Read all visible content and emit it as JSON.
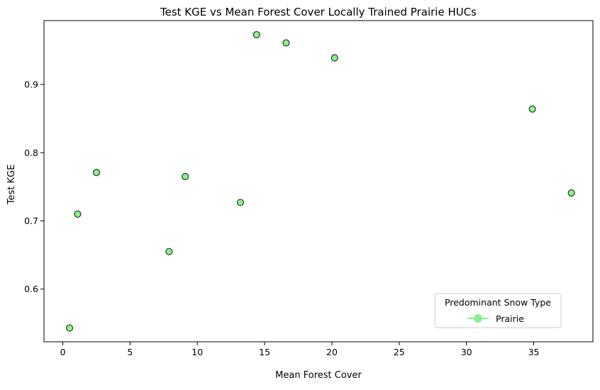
{
  "chart_data": {
    "type": "scatter",
    "title": "Test KGE vs Mean Forest Cover Locally Trained Prairie HUCs",
    "xlabel": "Mean Forest Cover",
    "ylabel": "Test KGE",
    "xlim": [
      -1.4,
      39.4
    ],
    "ylim": [
      0.5228,
      0.9937
    ],
    "xticks": [
      0,
      5,
      10,
      15,
      20,
      25,
      30,
      35
    ],
    "yticks": [
      0.6,
      0.7,
      0.8,
      0.9
    ],
    "xtick_labels": [
      "0",
      "5",
      "10",
      "15",
      "20",
      "25",
      "30",
      "35"
    ],
    "ytick_labels": [
      "0.6",
      "0.7",
      "0.8",
      "0.9"
    ],
    "grid": false,
    "series": [
      {
        "name": "Prairie",
        "color": "#90ee90",
        "edgecolor": "#1f3d1f",
        "marker": "circle",
        "points": [
          {
            "x": 0.5,
            "y": 0.543
          },
          {
            "x": 1.1,
            "y": 0.71
          },
          {
            "x": 2.5,
            "y": 0.771
          },
          {
            "x": 7.9,
            "y": 0.655
          },
          {
            "x": 9.1,
            "y": 0.765
          },
          {
            "x": 13.2,
            "y": 0.727
          },
          {
            "x": 14.4,
            "y": 0.973
          },
          {
            "x": 16.6,
            "y": 0.961
          },
          {
            "x": 20.2,
            "y": 0.939
          },
          {
            "x": 34.9,
            "y": 0.864
          },
          {
            "x": 37.8,
            "y": 0.741
          }
        ]
      }
    ],
    "legend": {
      "title": "Predominant Snow Type",
      "placement": "lower-right",
      "entries": [
        {
          "label": "Prairie",
          "color": "#90ee90"
        }
      ]
    }
  }
}
